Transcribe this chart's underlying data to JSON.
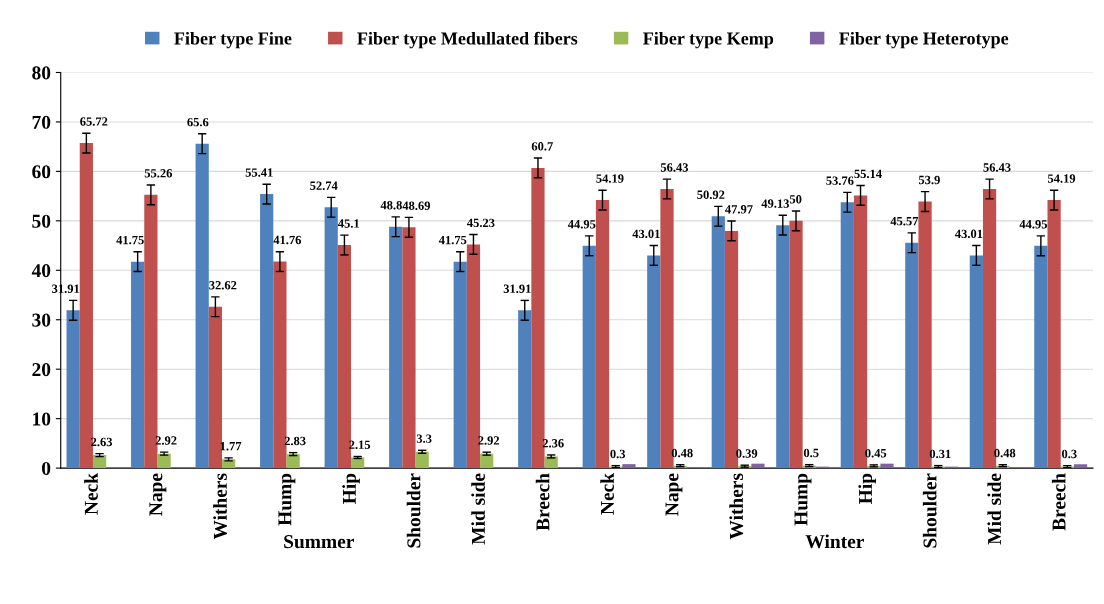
{
  "chart_data": {
    "type": "bar",
    "categories": [
      "Neck",
      "Nape",
      "Withers",
      "Hump",
      "Hip",
      "Shoulder",
      "Mid side",
      "Breech",
      "Neck",
      "Nape",
      "Withers",
      "Hump",
      "Hip",
      "Shoulder",
      "Mid side",
      "Breech"
    ],
    "annotations": [
      "Summer",
      "Winter"
    ],
    "series": [
      {
        "name": "Fiber type Fine",
        "color": "#4f81bd",
        "values": [
          31.91,
          41.75,
          65.6,
          55.41,
          52.74,
          48.8,
          41.75,
          31.91,
          44.95,
          43.01,
          50.92,
          49.13,
          53.76,
          45.57,
          43.01,
          44.95
        ],
        "errors": [
          2,
          2,
          2,
          2,
          2,
          2,
          2,
          2,
          2,
          2,
          2,
          2,
          2,
          2,
          2,
          2
        ],
        "value_labels": [
          "31.91",
          "41.75",
          "65.6",
          "55.41",
          "52.74",
          "48.8",
          "41.75",
          "31.91",
          "44.95",
          "43.01",
          "50.92",
          "49.13",
          "53.76",
          "45.57",
          "43.01",
          "44.95"
        ]
      },
      {
        "name": "Fiber type Medullated fibers",
        "color": "#c0504d",
        "values": [
          65.72,
          55.26,
          32.62,
          41.76,
          45.1,
          48.69,
          45.23,
          60.7,
          54.19,
          56.43,
          47.97,
          50,
          55.14,
          53.9,
          56.43,
          54.19
        ],
        "errors": [
          2,
          2,
          2,
          2,
          2,
          2,
          2,
          2,
          2,
          2,
          2,
          2,
          2,
          2,
          2,
          2
        ],
        "value_labels": [
          "65.72",
          "55.26",
          "32.62",
          "41.76",
          "45.1",
          "48.69",
          "45.23",
          "60.7",
          "54.19",
          "56.43",
          "47.97",
          "50",
          "55.14",
          "53.9",
          "56.43",
          "54.19"
        ]
      },
      {
        "name": "Fiber type Kemp",
        "color": "#9bbb59",
        "values": [
          2.63,
          2.92,
          1.77,
          2.83,
          2.15,
          3.3,
          2.92,
          2.36,
          0.3,
          0.48,
          0.39,
          0.5,
          0.45,
          0.31,
          0.48,
          0.3
        ],
        "errors": [
          0.3,
          0.3,
          0.3,
          0.3,
          0.2,
          0.3,
          0.3,
          0.3,
          0.2,
          0.2,
          0.2,
          0.2,
          0.2,
          0.2,
          0.2,
          0.2
        ],
        "value_labels": [
          "2.63",
          "2.92",
          "1.77",
          "2.83",
          "2.15",
          "3.3",
          "2.92",
          "2.36",
          "0.3",
          "0.48",
          "0.39",
          "0.5",
          "0.45",
          "0.31",
          "0.48",
          "0.3"
        ]
      },
      {
        "name": "Fiber type Heterotype",
        "color": "#8064a2",
        "values": [
          null,
          null,
          null,
          null,
          null,
          null,
          null,
          null,
          0.8,
          0.2,
          0.9,
          0.3,
          0.9,
          0.3,
          0.2,
          0.8
        ]
      }
    ],
    "ylim": [
      0,
      80
    ],
    "yticks": [
      0,
      10,
      20,
      30,
      40,
      50,
      60,
      70,
      80
    ],
    "grid": "y",
    "legend": "top"
  }
}
